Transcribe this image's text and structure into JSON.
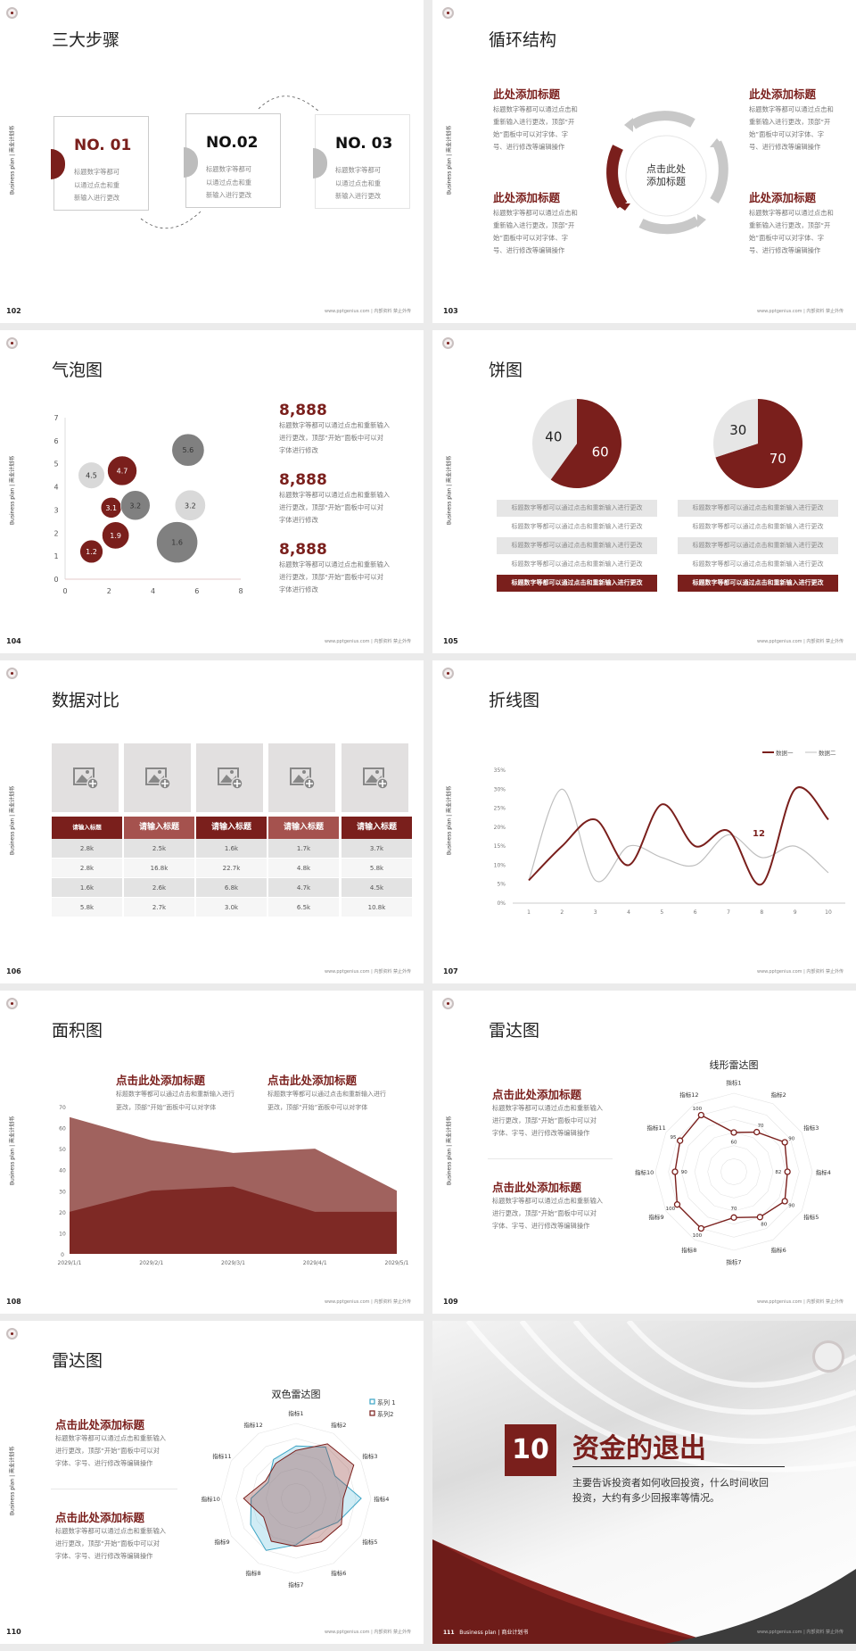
{
  "common": {
    "brand": "Business plan | 商业计划书",
    "footer": "www.pptgenius.com | 内部资料 禁止外传",
    "accent": "#7a1f1c",
    "gray_dark": "#808080",
    "gray_light": "#d9d9d9",
    "logo": "university-seal"
  },
  "slides": {
    "s102": {
      "page": "102",
      "title": "三大步骤",
      "steps": [
        {
          "no": "NO. 01",
          "lines": [
            "标题数字等都可",
            "以通过点击和重",
            "新输入进行更改"
          ]
        },
        {
          "no": "NO.02",
          "lines": [
            "标题数字等都可",
            "以通过点击和重",
            "新输入进行更改"
          ]
        },
        {
          "no": "NO. 03",
          "lines": [
            "标题数字等都可",
            "以通过点击和重",
            "新输入进行更改"
          ]
        }
      ]
    },
    "s103": {
      "page": "103",
      "title": "循环结构",
      "center": [
        "点击此处",
        "添加标题"
      ],
      "items": [
        {
          "heading": "此处添加标题",
          "lines": [
            "标题数字等都可以通过点击和",
            "重新输入进行更改，顶部“开",
            "始”面板中可以对字体、字",
            "号、进行修改等编辑操作"
          ]
        },
        {
          "heading": "此处添加标题",
          "lines": [
            "标题数字等都可以通过点击和",
            "重新输入进行更改，顶部“开",
            "始”面板中可以对字体、字",
            "号、进行修改等编辑操作"
          ]
        },
        {
          "heading": "此处添加标题",
          "lines": [
            "标题数字等都可以通过点击和",
            "重新输入进行更改，顶部“开",
            "始”面板中可以对字体、字",
            "号、进行修改等编辑操作"
          ]
        },
        {
          "heading": "此处添加标题",
          "lines": [
            "标题数字等都可以通过点击和",
            "重新输入进行更改，顶部“开",
            "始”面板中可以对字体、字",
            "号、进行修改等编辑操作"
          ]
        }
      ]
    },
    "s104": {
      "page": "104",
      "title": "气泡图",
      "stats": [
        {
          "value": "8,888",
          "lines": [
            "标题数字等都可以通过点击和重新输入",
            "进行更改，顶部“开始”面板中可以对",
            "字体进行修改"
          ]
        },
        {
          "value": "8,888",
          "lines": [
            "标题数字等都可以通过点击和重新输入",
            "进行更改，顶部“开始”面板中可以对",
            "字体进行修改"
          ]
        },
        {
          "value": "8,888",
          "lines": [
            "标题数字等都可以通过点击和重新输入",
            "进行更改，顶部“开始”面板中可以对",
            "字体进行修改"
          ]
        }
      ]
    },
    "s105": {
      "page": "105",
      "title": "饼图",
      "rows_left": [
        "标题数字等都可以通过点击和重新输入进行更改",
        "标题数字等都可以通过点击和重新输入进行更改",
        "标题数字等都可以通过点击和重新输入进行更改",
        "标题数字等都可以通过点击和重新输入进行更改",
        "标题数字等都可以通过点击和重新输入进行更改"
      ],
      "rows_right": [
        "标题数字等都可以通过点击和重新输入进行更改",
        "标题数字等都可以通过点击和重新输入进行更改",
        "标题数字等都可以通过点击和重新输入进行更改",
        "标题数字等都可以通过点击和重新输入进行更改",
        "标题数字等都可以通过点击和重新输入进行更改"
      ]
    },
    "s106": {
      "page": "106",
      "title": "数据对比",
      "image_placeholder_icon": "add-image-icon",
      "headers": [
        "请输入标题",
        "请输入标题",
        "请输入标题",
        "请输入标题",
        "请输入标题"
      ],
      "rows": [
        [
          "2.8k",
          "2.5k",
          "1.6k",
          "1.7k",
          "3.7k"
        ],
        [
          "2.8k",
          "16.8k",
          "22.7k",
          "4.8k",
          "5.8k"
        ],
        [
          "1.6k",
          "2.6k",
          "6.8k",
          "4.7k",
          "4.5k"
        ],
        [
          "5.8k",
          "2.7k",
          "3.0k",
          "6.5k",
          "10.8k"
        ]
      ]
    },
    "s107": {
      "page": "107",
      "title": "折线图"
    },
    "s108": {
      "page": "108",
      "title": "面积图",
      "blocks": [
        {
          "heading": "点击此处添加标题",
          "lines": [
            "标题数字等都可以通过点击和重新输入进行",
            "更改，顶部“开始”面板中可以对字体"
          ]
        },
        {
          "heading": "点击此处添加标题",
          "lines": [
            "标题数字等都可以通过点击和重新输入进行",
            "更改，顶部“开始”面板中可以对字体"
          ]
        }
      ]
    },
    "s109": {
      "page": "109",
      "title": "雷达图",
      "blocks": [
        {
          "heading": "点击此处添加标题",
          "lines": [
            "标题数字等都可以通过点击和重新输入",
            "进行更改，顶部“开始”面板中可以对",
            "字体、字号、进行修改等编辑操作"
          ]
        },
        {
          "heading": "点击此处添加标题",
          "lines": [
            "标题数字等都可以通过点击和重新输入",
            "进行更改，顶部“开始”面板中可以对",
            "字体、字号、进行修改等编辑操作"
          ]
        }
      ]
    },
    "s110": {
      "page": "110",
      "title": "雷达图",
      "blocks": [
        {
          "heading": "点击此处添加标题",
          "lines": [
            "标题数字等都可以通过点击和重新输入",
            "进行更改，顶部“开始”面板中可以对",
            "字体、字号、进行修改等编辑操作"
          ]
        },
        {
          "heading": "点击此处添加标题",
          "lines": [
            "标题数字等都可以通过点击和重新输入",
            "进行更改，顶部“开始”面板中可以对",
            "字体、字号、进行修改等编辑操作"
          ]
        }
      ]
    },
    "s111": {
      "page": "111",
      "number": "10",
      "title": "资金的退出",
      "desc": [
        "主要告诉投资者如何收回投资，什么时间收回",
        "投资，大约有多少回报率等情况。"
      ]
    }
  },
  "chart_data": [
    {
      "type": "scatter",
      "subtype": "bubble",
      "xlim": [
        0,
        8
      ],
      "ylim": [
        0,
        7
      ],
      "x_ticks": [
        "0",
        "2",
        "4",
        "6",
        "8"
      ],
      "y_ticks": [
        "0",
        "1",
        "2",
        "3",
        "4",
        "5",
        "6",
        "7"
      ],
      "points": [
        {
          "x": 1.2,
          "y": 4.5,
          "size": 4.5,
          "label": "4.5",
          "color": "#d9d9d9"
        },
        {
          "x": 2.6,
          "y": 4.7,
          "size": 5,
          "label": "4.7",
          "color": "#7a1f1c"
        },
        {
          "x": 5.6,
          "y": 5.6,
          "size": 5.5,
          "label": "5.6",
          "color": "#808080"
        },
        {
          "x": 2.1,
          "y": 3.1,
          "size": 3.5,
          "label": "3.1",
          "color": "#7a1f1c"
        },
        {
          "x": 3.2,
          "y": 3.2,
          "size": 5,
          "label": "3.2",
          "color": "#808080"
        },
        {
          "x": 5.7,
          "y": 3.2,
          "size": 5.2,
          "label": "3.2",
          "color": "#d9d9d9"
        },
        {
          "x": 2.3,
          "y": 1.9,
          "size": 4.6,
          "label": "1.9",
          "color": "#7a1f1c"
        },
        {
          "x": 1.2,
          "y": 1.2,
          "size": 3.9,
          "label": "1.2",
          "color": "#7a1f1c"
        },
        {
          "x": 5.1,
          "y": 1.6,
          "size": 7,
          "label": "1.6",
          "color": "#808080"
        }
      ]
    },
    {
      "type": "pie",
      "values": [
        60,
        40
      ],
      "labels": [
        "60",
        "40"
      ],
      "colors": [
        "#7a1f1c",
        "#e6e6e6"
      ]
    },
    {
      "type": "pie",
      "values": [
        70,
        30
      ],
      "labels": [
        "70",
        "30"
      ],
      "colors": [
        "#7a1f1c",
        "#e6e6e6"
      ]
    },
    {
      "type": "line",
      "smooth": true,
      "categories": [
        "1",
        "2",
        "3",
        "4",
        "5",
        "6",
        "7",
        "8",
        "9",
        "10"
      ],
      "ylim": [
        0,
        35
      ],
      "y_ticks": [
        "0%",
        "5%",
        "10%",
        "15%",
        "20%",
        "25%",
        "30%",
        "35%"
      ],
      "legend": "top-right",
      "series": [
        {
          "name": "数据一",
          "color": "#7a1f1c",
          "values": [
            6,
            15,
            22,
            10,
            26,
            15,
            19,
            5,
            30,
            22
          ]
        },
        {
          "name": "数据二",
          "color": "#bfbfbf",
          "values": [
            6,
            30,
            6,
            15,
            12,
            10,
            18,
            12,
            15,
            8
          ]
        }
      ],
      "annotation": "12"
    },
    {
      "type": "area",
      "categories": [
        "2029/1/1",
        "2029/2/1",
        "2029/3/1",
        "2029/4/1",
        "2029/5/1"
      ],
      "ylim": [
        0,
        70
      ],
      "y_ticks": [
        "0",
        "10",
        "20",
        "30",
        "40",
        "50",
        "60",
        "70"
      ],
      "series": [
        {
          "values": [
            65,
            54,
            48,
            50,
            30
          ],
          "color": "#a0625e"
        },
        {
          "values": [
            20,
            30,
            32,
            20,
            20
          ],
          "color": "#7e2925"
        }
      ]
    },
    {
      "type": "radar",
      "title": "线形雷达图",
      "max": 120,
      "rings": 6,
      "categories": [
        "指标1",
        "指标2",
        "指标3",
        "指标4",
        "指标5",
        "指标6",
        "指标7",
        "指标8",
        "指标9",
        "指标10",
        "指标11",
        "指标12"
      ],
      "series": [
        {
          "values": [
            60,
            70,
            90,
            82,
            90,
            80,
            70,
            100,
            100,
            90,
            95,
            100
          ],
          "color": "#7a1f1c"
        }
      ],
      "data_labels": [
        "60",
        "70",
        "90",
        "82",
        "90",
        "80",
        "70",
        "100",
        "100",
        "90",
        "95",
        "100"
      ]
    },
    {
      "type": "radar",
      "title": "双色雷达图",
      "max": 100,
      "rings": 5,
      "legend": "top-right",
      "categories": [
        "指标1",
        "指标2",
        "指标3",
        "指标4",
        "指标5",
        "指标6",
        "指标7",
        "指标8",
        "指标9",
        "指标10",
        "指标11",
        "指标12"
      ],
      "series": [
        {
          "name": "系列 1",
          "color": "#3ba3c4",
          "fill": "rgba(120,200,225,0.35)",
          "values": [
            70,
            79,
            60,
            87,
            64,
            51,
            62,
            80,
            70,
            60,
            43,
            60
          ]
        },
        {
          "name": "系列2",
          "color": "#7a1f1c",
          "fill": "rgba(150,70,65,0.35)",
          "values": [
            64,
            84,
            89,
            63,
            70,
            67,
            64,
            66,
            50,
            70,
            47,
            54
          ]
        }
      ]
    }
  ]
}
